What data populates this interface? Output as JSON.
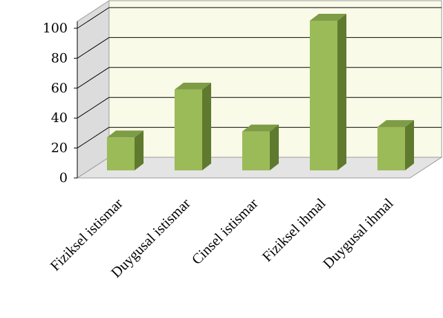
{
  "chart_data": {
    "type": "bar",
    "title": "",
    "xlabel": "",
    "ylabel": "",
    "categories": [
      "Fiziksel istismar",
      "Duygusal istismar",
      "Cinsel istismar",
      "Fiziksel ihmal",
      "Duygusal ihmal"
    ],
    "values": [
      22,
      54,
      26,
      100,
      29
    ],
    "ylim": [
      0,
      100
    ],
    "yticks": [
      "0",
      "20",
      "40",
      "60",
      "80",
      "100"
    ],
    "grid": true,
    "legend": "none",
    "bar_style": "3d-column",
    "colors": {
      "bar_front": "#9bbb59",
      "bar_side": "#5f7a2e",
      "bar_top": "#7e9c45",
      "back_wall": "#fafae8",
      "side_wall": "#dcdcdc",
      "floor": "#e4e4e4",
      "grid": "#000000"
    }
  }
}
